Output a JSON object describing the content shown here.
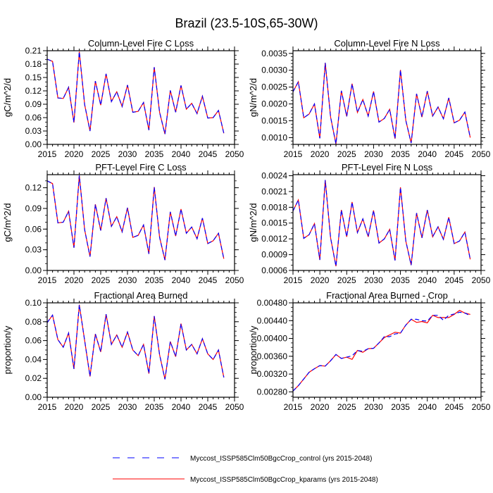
{
  "title": "Brazil (23.5-10S,65-30W)",
  "colors": {
    "control": "#0000ff",
    "kparams": "#ff0000",
    "axis": "#000000"
  },
  "legend": {
    "placement": "bottom-center",
    "items": [
      {
        "label": "Myccost_ISSP585Clm50BgcCrop_control (yrs 2015-2048)",
        "style": "dashed",
        "color": "#0000ff"
      },
      {
        "label": "Myccost_ISSP585Clm50BgcCrop_kparams (yrs 2015-2048)",
        "style": "solid",
        "color": "#ff0000"
      }
    ]
  },
  "chart_data": [
    {
      "type": "line",
      "title": "Column-Level Fire C Loss",
      "ylabel": "gC/m^2/d",
      "xlim": [
        2015,
        2050
      ],
      "ylim": [
        0,
        0.21
      ],
      "xticks": [
        "2015",
        "2020",
        "2025",
        "2030",
        "2035",
        "2040",
        "2045",
        "2050"
      ],
      "yticks": [
        "0.00",
        "0.03",
        "0.06",
        "0.09",
        "0.12",
        "0.15",
        "0.18",
        "0.21"
      ],
      "yminor": 0.01,
      "x_start": 2015,
      "series": [
        {
          "name": "control",
          "values": [
            0.191,
            0.186,
            0.104,
            0.103,
            0.128,
            0.049,
            0.208,
            0.089,
            0.03,
            0.142,
            0.088,
            0.158,
            0.096,
            0.118,
            0.085,
            0.133,
            0.072,
            0.074,
            0.094,
            0.032,
            0.173,
            0.072,
            0.023,
            0.121,
            0.072,
            0.132,
            0.079,
            0.092,
            0.069,
            0.108,
            0.059,
            0.06,
            0.076,
            0.025
          ]
        },
        {
          "name": "kparams",
          "values": [
            0.191,
            0.186,
            0.104,
            0.103,
            0.128,
            0.049,
            0.208,
            0.089,
            0.03,
            0.142,
            0.088,
            0.158,
            0.096,
            0.118,
            0.085,
            0.133,
            0.072,
            0.074,
            0.094,
            0.032,
            0.173,
            0.072,
            0.023,
            0.121,
            0.072,
            0.132,
            0.079,
            0.092,
            0.069,
            0.108,
            0.059,
            0.06,
            0.076,
            0.025
          ]
        }
      ]
    },
    {
      "type": "line",
      "title": "Column-Level Fire N Loss",
      "ylabel": "gN/m^2/d",
      "xlim": [
        2015,
        2050
      ],
      "ylim": [
        0.0008,
        0.00358
      ],
      "xticks": [
        "2015",
        "2020",
        "2025",
        "2030",
        "2035",
        "2040",
        "2045",
        "2050"
      ],
      "yticks": [
        "0.0010",
        "0.0015",
        "0.0020",
        "0.0025",
        "0.0030",
        "0.0035"
      ],
      "yminor": 0.0001,
      "x_start": 2015,
      "series": [
        {
          "name": "control",
          "values": [
            0.00236,
            0.00266,
            0.00159,
            0.0017,
            0.002,
            0.00098,
            0.00322,
            0.00161,
            0.00081,
            0.00239,
            0.00163,
            0.0026,
            0.00175,
            0.00213,
            0.00164,
            0.00237,
            0.00146,
            0.00157,
            0.00184,
            0.00097,
            0.00301,
            0.00151,
            0.00084,
            0.0023,
            0.00161,
            0.00238,
            0.00164,
            0.00191,
            0.00156,
            0.00218,
            0.00144,
            0.00152,
            0.00176,
            0.001
          ]
        },
        {
          "name": "kparams",
          "values": [
            0.00236,
            0.00266,
            0.00159,
            0.0017,
            0.002,
            0.00098,
            0.00322,
            0.00161,
            0.00081,
            0.00239,
            0.00163,
            0.0026,
            0.00175,
            0.00213,
            0.00164,
            0.00237,
            0.00146,
            0.00157,
            0.00184,
            0.00097,
            0.00301,
            0.00151,
            0.00084,
            0.0023,
            0.00161,
            0.00238,
            0.00164,
            0.00191,
            0.00156,
            0.00218,
            0.00144,
            0.00152,
            0.00176,
            0.001
          ]
        }
      ]
    },
    {
      "type": "line",
      "title": "PFT-Level Fire C Loss",
      "ylabel": "gC/m^2/d",
      "xlim": [
        2015,
        2050
      ],
      "ylim": [
        0,
        0.139
      ],
      "xticks": [
        "2015",
        "2020",
        "2025",
        "2030",
        "2035",
        "2040",
        "2045",
        "2050"
      ],
      "yticks": [
        "0.00",
        "0.03",
        "0.06",
        "0.09",
        "0.12"
      ],
      "yminor": 0.01,
      "x_start": 2015,
      "series": [
        {
          "name": "control",
          "values": [
            0.13,
            0.126,
            0.069,
            0.07,
            0.086,
            0.033,
            0.138,
            0.059,
            0.02,
            0.096,
            0.058,
            0.105,
            0.064,
            0.078,
            0.056,
            0.091,
            0.048,
            0.051,
            0.066,
            0.024,
            0.121,
            0.048,
            0.015,
            0.085,
            0.05,
            0.089,
            0.054,
            0.063,
            0.046,
            0.076,
            0.039,
            0.043,
            0.054,
            0.017
          ]
        },
        {
          "name": "kparams",
          "values": [
            0.13,
            0.126,
            0.069,
            0.07,
            0.086,
            0.033,
            0.138,
            0.059,
            0.02,
            0.096,
            0.058,
            0.105,
            0.064,
            0.078,
            0.056,
            0.091,
            0.048,
            0.051,
            0.066,
            0.024,
            0.121,
            0.048,
            0.015,
            0.085,
            0.05,
            0.089,
            0.054,
            0.063,
            0.046,
            0.076,
            0.039,
            0.043,
            0.054,
            0.017
          ]
        }
      ]
    },
    {
      "type": "line",
      "title": "PFT-Level Fire N Loss",
      "ylabel": "gN/m^2/d",
      "xlim": [
        2015,
        2050
      ],
      "ylim": [
        0.0006,
        0.00242
      ],
      "xticks": [
        "2015",
        "2020",
        "2025",
        "2030",
        "2035",
        "2040",
        "2045",
        "2050"
      ],
      "yticks": [
        "0.0006",
        "0.0009",
        "0.0012",
        "0.0015",
        "0.0018",
        "0.0021",
        "0.0024"
      ],
      "yminor": 0.0001,
      "x_start": 2015,
      "series": [
        {
          "name": "control",
          "values": [
            0.00173,
            0.00194,
            0.00121,
            0.00128,
            0.00149,
            0.0008,
            0.00232,
            0.00122,
            0.00068,
            0.00175,
            0.00124,
            0.0019,
            0.00132,
            0.00158,
            0.00124,
            0.00174,
            0.00112,
            0.0012,
            0.00138,
            0.00079,
            0.00218,
            0.00116,
            0.0007,
            0.00169,
            0.00122,
            0.00175,
            0.00124,
            0.00143,
            0.00119,
            0.00161,
            0.00111,
            0.00116,
            0.00133,
            0.00081
          ]
        },
        {
          "name": "kparams",
          "values": [
            0.00173,
            0.00194,
            0.00121,
            0.00128,
            0.00149,
            0.0008,
            0.00232,
            0.00122,
            0.00068,
            0.00175,
            0.00124,
            0.0019,
            0.00132,
            0.00158,
            0.00124,
            0.00174,
            0.00112,
            0.0012,
            0.00138,
            0.00079,
            0.00218,
            0.00116,
            0.0007,
            0.00169,
            0.00122,
            0.00175,
            0.00124,
            0.00143,
            0.00119,
            0.00161,
            0.00111,
            0.00116,
            0.00133,
            0.00081
          ]
        }
      ]
    },
    {
      "type": "line",
      "title": "Fractional Area Burned",
      "ylabel": "proportion/y",
      "xlim": [
        2015,
        2050
      ],
      "ylim": [
        0,
        0.1
      ],
      "xticks": [
        "2015",
        "2020",
        "2025",
        "2030",
        "2035",
        "2040",
        "2045",
        "2050"
      ],
      "yticks": [
        "0.00",
        "0.02",
        "0.04",
        "0.06",
        "0.08",
        "0.10"
      ],
      "yminor": 0.005,
      "x_start": 2015,
      "series": [
        {
          "name": "control",
          "values": [
            0.079,
            0.087,
            0.061,
            0.053,
            0.068,
            0.03,
            0.098,
            0.06,
            0.022,
            0.067,
            0.048,
            0.088,
            0.056,
            0.066,
            0.053,
            0.069,
            0.05,
            0.044,
            0.056,
            0.025,
            0.086,
            0.045,
            0.019,
            0.059,
            0.043,
            0.078,
            0.05,
            0.056,
            0.046,
            0.062,
            0.046,
            0.04,
            0.05,
            0.021
          ]
        },
        {
          "name": "kparams",
          "values": [
            0.079,
            0.087,
            0.061,
            0.053,
            0.068,
            0.03,
            0.098,
            0.06,
            0.022,
            0.067,
            0.048,
            0.088,
            0.056,
            0.066,
            0.053,
            0.069,
            0.05,
            0.044,
            0.056,
            0.025,
            0.086,
            0.045,
            0.019,
            0.059,
            0.043,
            0.078,
            0.05,
            0.056,
            0.046,
            0.062,
            0.046,
            0.04,
            0.05,
            0.021
          ]
        }
      ]
    },
    {
      "type": "line",
      "title": "Fractional Area Burned - Crop",
      "ylabel": "proportion/y",
      "xlim": [
        2015,
        2050
      ],
      "ylim": [
        0.00268,
        0.0048
      ],
      "xticks": [
        "2015",
        "2020",
        "2025",
        "2030",
        "2035",
        "2040",
        "2045",
        "2050"
      ],
      "yticks": [
        "0.00280",
        "0.00320",
        "0.00360",
        "0.00400",
        "0.00440",
        "0.00480"
      ],
      "yminor": 0.0001,
      "x_start": 2015,
      "series": [
        {
          "name": "control",
          "values": [
            0.00282,
            0.00294,
            0.00309,
            0.00324,
            0.00332,
            0.00339,
            0.00338,
            0.0035,
            0.00364,
            0.00355,
            0.00358,
            0.00361,
            0.00373,
            0.00371,
            0.00377,
            0.00378,
            0.0039,
            0.00404,
            0.00404,
            0.0041,
            0.00412,
            0.0043,
            0.00443,
            0.00443,
            0.0044,
            0.00439,
            0.00452,
            0.00452,
            0.00441,
            0.00452,
            0.00455,
            0.00459,
            0.00457,
            0.00451
          ]
        },
        {
          "name": "kparams",
          "values": [
            0.00282,
            0.00294,
            0.00309,
            0.00324,
            0.00332,
            0.00339,
            0.00338,
            0.0035,
            0.00364,
            0.00355,
            0.00358,
            0.00353,
            0.00373,
            0.00369,
            0.00377,
            0.00378,
            0.0039,
            0.00402,
            0.00408,
            0.00414,
            0.00412,
            0.0043,
            0.00443,
            0.00436,
            0.00438,
            0.00435,
            0.00452,
            0.00447,
            0.00447,
            0.00447,
            0.00454,
            0.00463,
            0.00457,
            0.00454
          ]
        }
      ]
    }
  ]
}
